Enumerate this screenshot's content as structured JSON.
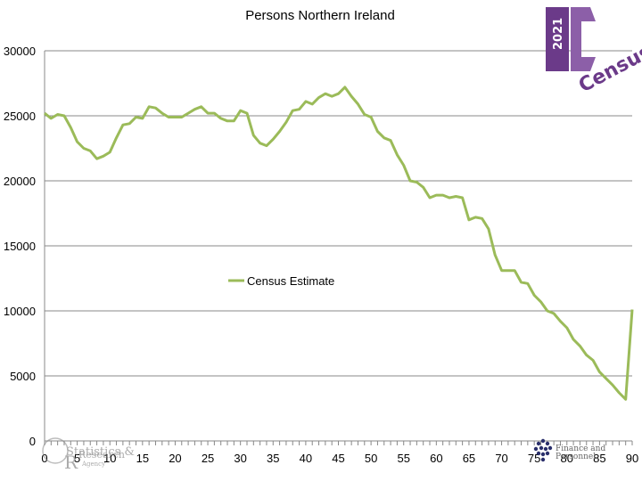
{
  "chart_data": {
    "type": "line",
    "title": "Persons Northern Ireland",
    "xlabel": "",
    "ylabel": "",
    "xlim": [
      0,
      90
    ],
    "ylim": [
      0,
      30000
    ],
    "xticks": [
      0,
      5,
      10,
      15,
      20,
      25,
      30,
      35,
      40,
      45,
      50,
      55,
      60,
      65,
      70,
      75,
      80,
      85,
      90
    ],
    "yticks": [
      0,
      5000,
      10000,
      15000,
      20000,
      25000,
      30000
    ],
    "grid": "horizontal",
    "legend_placement": "center",
    "series": [
      {
        "name": "Census Estimate",
        "color": "#9bbb59",
        "x": [
          0,
          1,
          2,
          3,
          4,
          5,
          6,
          7,
          8,
          9,
          10,
          11,
          12,
          13,
          14,
          15,
          16,
          17,
          18,
          19,
          20,
          21,
          22,
          23,
          24,
          25,
          26,
          27,
          28,
          29,
          30,
          31,
          32,
          33,
          34,
          35,
          36,
          37,
          38,
          39,
          40,
          41,
          42,
          43,
          44,
          45,
          46,
          47,
          48,
          49,
          50,
          51,
          52,
          53,
          54,
          55,
          56,
          57,
          58,
          59,
          60,
          61,
          62,
          63,
          64,
          65,
          66,
          67,
          68,
          69,
          70,
          71,
          72,
          73,
          74,
          75,
          76,
          77,
          78,
          79,
          80,
          81,
          82,
          83,
          84,
          85,
          86,
          87,
          88,
          89,
          90
        ],
        "y": [
          25200,
          24800,
          25100,
          25000,
          24100,
          23000,
          22500,
          22300,
          21700,
          21900,
          22200,
          23300,
          24300,
          24400,
          24900,
          24800,
          25700,
          25600,
          25200,
          24900,
          24900,
          24900,
          25200,
          25500,
          25700,
          25200,
          25200,
          24800,
          24600,
          24600,
          25400,
          25200,
          23500,
          22900,
          22700,
          23200,
          23800,
          24500,
          25400,
          25500,
          26100,
          25900,
          26400,
          26700,
          26500,
          26700,
          27200,
          26500,
          25900,
          25100,
          24900,
          23800,
          23300,
          23100,
          22000,
          21200,
          20000,
          19900,
          19500,
          18700,
          18900,
          18900,
          18700,
          18800,
          18700,
          17000,
          17200,
          17100,
          16300,
          14300,
          13100,
          13100,
          13100,
          12200,
          12100,
          11200,
          10700,
          10000,
          9800,
          9200,
          8700,
          7800,
          7300,
          6600,
          6200,
          5300,
          4800,
          4300,
          3700,
          3200,
          10100
        ]
      }
    ]
  },
  "logos": {
    "census_year": "2021",
    "census_word": "Census",
    "nisra_line1": "Statistics &",
    "nisra_line2": "Research",
    "nisra_line3": "Agency",
    "nisra_initials": "R",
    "dfp_line1": "Finance and",
    "dfp_line2": "Personnel"
  }
}
